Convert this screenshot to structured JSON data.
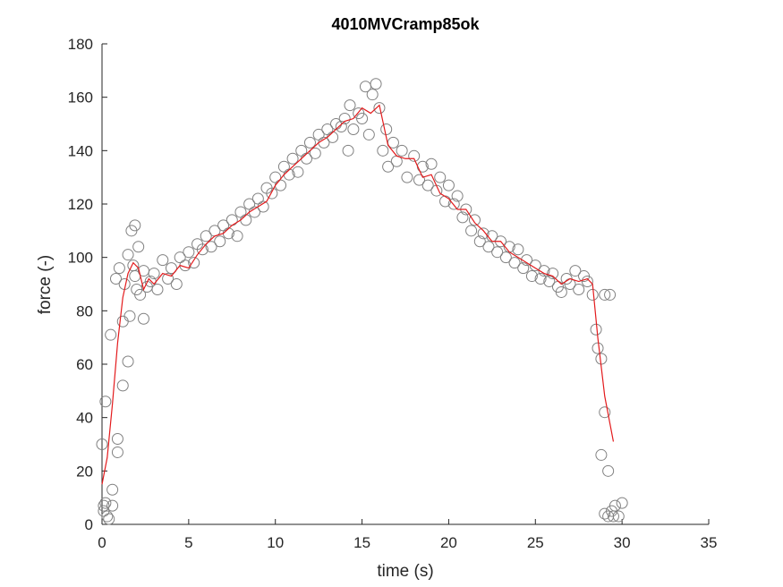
{
  "chart_data": {
    "type": "scatter",
    "title": "4010MVCramp85ok",
    "x_label": "time (s)",
    "y_label": "force (-)",
    "xlim": [
      0,
      35
    ],
    "ylim": [
      0,
      180
    ],
    "xticks": [
      0,
      5,
      10,
      15,
      20,
      25,
      30,
      35
    ],
    "yticks": [
      0,
      20,
      40,
      60,
      80,
      100,
      120,
      140,
      160,
      180
    ],
    "series": [
      {
        "type": "scatter",
        "color": "#808080",
        "x": [
          0,
          0.1,
          0.2,
          0.1,
          0.2,
          0.3,
          0.4,
          0.5,
          0.6,
          0.6,
          0.8,
          0.9,
          0.9,
          1.0,
          1.2,
          1.2,
          1.3,
          1.5,
          1.5,
          1.6,
          1.7,
          1.8,
          1.9,
          1.9,
          2.0,
          2.1,
          2.2,
          2.4,
          2.4,
          2.6,
          2.8,
          3.0,
          3.2,
          3.5,
          3.8,
          4.0,
          4.3,
          4.5,
          4.8,
          5.0,
          5.3,
          5.5,
          5.8,
          6.0,
          6.3,
          6.5,
          6.8,
          7.0,
          7.3,
          7.5,
          7.8,
          8.0,
          8.3,
          8.5,
          8.8,
          9.0,
          9.3,
          9.5,
          9.8,
          10.0,
          10.3,
          10.5,
          10.8,
          11.0,
          11.3,
          11.5,
          11.8,
          12.0,
          12.3,
          12.5,
          12.8,
          13.0,
          13.3,
          13.5,
          13.8,
          14.0,
          14.2,
          14.3,
          14.5,
          14.8,
          15.0,
          15.2,
          15.4,
          15.6,
          15.8,
          16.0,
          16.2,
          16.4,
          16.5,
          16.8,
          17.0,
          17.3,
          17.6,
          18.0,
          18.3,
          18.5,
          18.8,
          19.0,
          19.3,
          19.5,
          19.8,
          20.0,
          20.3,
          20.5,
          20.8,
          21.0,
          21.3,
          21.5,
          21.8,
          22.0,
          22.3,
          22.5,
          22.8,
          23.0,
          23.3,
          23.5,
          23.8,
          24.0,
          24.3,
          24.5,
          24.8,
          25.0,
          25.3,
          25.5,
          25.8,
          26.0,
          26.3,
          26.5,
          26.8,
          27.0,
          27.3,
          27.5,
          27.8,
          28.0,
          28.3,
          28.5,
          28.6,
          28.8,
          28.8,
          29.0,
          29.0,
          29.2,
          29.2,
          29.0,
          29.3,
          29.4,
          29.5,
          29.6,
          29.8,
          30.0
        ],
        "values": [
          30,
          7,
          46,
          5,
          8,
          3,
          2,
          71,
          13,
          7,
          92,
          32,
          27,
          96,
          52,
          76,
          90,
          61,
          101,
          78,
          110,
          97,
          112,
          93,
          88,
          104,
          86,
          77,
          95,
          89,
          91,
          94,
          88,
          99,
          92,
          96,
          90,
          100,
          97,
          102,
          98,
          105,
          103,
          108,
          104,
          110,
          106,
          112,
          109,
          114,
          108,
          117,
          114,
          120,
          117,
          122,
          119,
          126,
          124,
          130,
          127,
          134,
          131,
          137,
          132,
          140,
          137,
          143,
          139,
          146,
          143,
          148,
          145,
          150,
          149,
          152,
          140,
          157,
          148,
          154,
          152,
          164,
          146,
          161,
          165,
          156,
          140,
          148,
          134,
          143,
          136,
          140,
          130,
          138,
          129,
          134,
          127,
          135,
          125,
          130,
          121,
          127,
          120,
          123,
          115,
          118,
          110,
          114,
          106,
          109,
          104,
          108,
          102,
          106,
          100,
          104,
          98,
          103,
          96,
          99,
          93,
          97,
          92,
          95,
          91,
          94,
          89,
          87,
          92,
          90,
          95,
          88,
          93,
          91,
          86,
          73,
          66,
          62,
          26,
          42,
          4,
          3,
          20,
          86,
          86,
          5,
          3,
          7,
          3,
          8
        ]
      },
      {
        "type": "line",
        "color": "#e31a1c",
        "x": [
          0,
          0.3,
          0.6,
          0.9,
          1.2,
          1.5,
          1.8,
          2.1,
          2.4,
          2.7,
          3.0,
          3.5,
          4,
          4.5,
          5,
          5.5,
          6,
          6.5,
          7,
          7.5,
          8,
          8.5,
          9,
          9.5,
          10,
          10.5,
          11,
          11.5,
          12,
          12.5,
          13,
          13.5,
          14,
          14.5,
          15,
          15.5,
          16,
          16.5,
          17,
          17.5,
          18,
          18.5,
          19,
          19.5,
          20,
          20.5,
          21,
          21.5,
          22,
          22.5,
          23,
          23.5,
          24,
          24.5,
          25,
          25.5,
          26,
          26.5,
          27,
          27.5,
          28,
          28.3,
          28.6,
          29,
          29.5
        ],
        "values": [
          15,
          25,
          45,
          68,
          85,
          94,
          98,
          96,
          88,
          92,
          90,
          94,
          93,
          97,
          96,
          101,
          105,
          108,
          109,
          112,
          114,
          117,
          119,
          121,
          127,
          131,
          134,
          137,
          140,
          143,
          145,
          148,
          151,
          152,
          156,
          154,
          157,
          142,
          138,
          137,
          137,
          130,
          131,
          124,
          122,
          118,
          118,
          113,
          110,
          106,
          106,
          102,
          100,
          98,
          96,
          94,
          93,
          90,
          92,
          91,
          92,
          90,
          70,
          48,
          31
        ]
      }
    ]
  }
}
